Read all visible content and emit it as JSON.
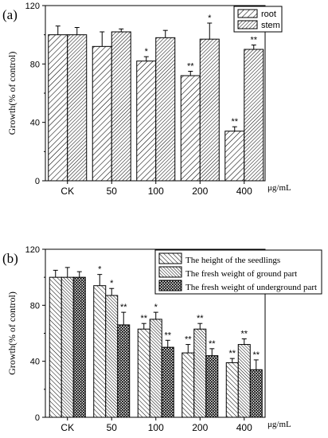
{
  "chart_data": [
    {
      "type": "bar",
      "panel_label": "(a)",
      "ylabel": "Growth(% of control)",
      "xunit": "μg/mL",
      "ylim": [
        0,
        120
      ],
      "yticks": [
        "0",
        "40",
        "80",
        "120"
      ],
      "categories": [
        "CK",
        "50",
        "100",
        "200",
        "400"
      ],
      "legend_position": "top-right",
      "series": [
        {
          "name": "root",
          "pattern": "hatch-right",
          "values": [
            100,
            92,
            82,
            72,
            34
          ],
          "errors": [
            6,
            10,
            3,
            3,
            3
          ],
          "significance": [
            "",
            "",
            "*",
            "**",
            "**"
          ]
        },
        {
          "name": "stem",
          "pattern": "hatch-right-dense",
          "values": [
            100,
            102,
            98,
            97,
            90
          ],
          "errors": [
            5,
            2,
            5,
            11,
            3
          ],
          "significance": [
            "",
            "",
            "",
            "*",
            "**"
          ]
        }
      ]
    },
    {
      "type": "bar",
      "panel_label": "(b)",
      "ylabel": "Growth(% of control)",
      "xunit": "μg/mL",
      "ylim": [
        0,
        120
      ],
      "yticks": [
        "0",
        "40",
        "80",
        "120"
      ],
      "categories": [
        "CK",
        "50",
        "100",
        "200",
        "400"
      ],
      "legend_position": "top-right",
      "series": [
        {
          "name": "The height of the seedlings",
          "pattern": "hatch-left",
          "values": [
            100,
            94,
            63,
            46,
            39
          ],
          "errors": [
            5,
            8,
            4,
            6,
            3
          ],
          "significance": [
            "",
            "*",
            "**",
            "**",
            "**"
          ]
        },
        {
          "name": "The fresh weight of ground part",
          "pattern": "hatch-left-dense",
          "values": [
            100,
            87,
            70,
            63,
            52
          ],
          "errors": [
            7,
            5,
            5,
            4,
            4
          ],
          "significance": [
            "",
            "*",
            "*",
            "**",
            "**"
          ]
        },
        {
          "name": "The fresh weight of underground part",
          "pattern": "crosshatch",
          "values": [
            100,
            66,
            50,
            44,
            34
          ],
          "errors": [
            4,
            9,
            5,
            5,
            7
          ],
          "significance": [
            "",
            "**",
            "**",
            "**",
            "**"
          ]
        }
      ]
    }
  ]
}
